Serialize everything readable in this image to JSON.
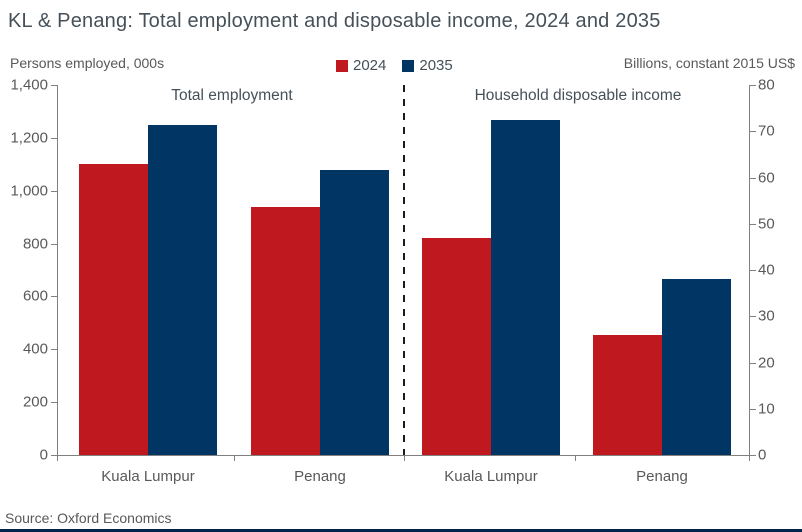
{
  "header": {
    "title": "KL & Penang: Total employment and disposable income, 2024 and 2035",
    "left_axis_title": "Persons employed, 000s",
    "right_axis_title": "Billions, constant 2015 US$"
  },
  "legend": [
    {
      "label": "2024",
      "color": "#C0181F"
    },
    {
      "label": "2035",
      "color": "#003564"
    }
  ],
  "footer": {
    "source": "Source: Oxford Economics"
  },
  "chart_data": {
    "type": "bar",
    "title": "KL & Penang: Total employment and disposable income, 2024 and 2035",
    "legend": [
      "2024",
      "2035"
    ],
    "grid": false,
    "legend_position": "top-center",
    "series_colors": {
      "2024": "#C0181F",
      "2035": "#003564"
    },
    "panels": [
      {
        "title": "Total employment",
        "axis_side": "left",
        "ylabel": "Persons employed, 000s",
        "ylim": [
          0,
          1400
        ],
        "tick_labels": [
          "0",
          "200",
          "400",
          "600",
          "800",
          "1,000",
          "1,200",
          "1,400"
        ],
        "categories": [
          "Kuala Lumpur",
          "Penang"
        ],
        "series": [
          {
            "name": "2024",
            "color": "#C0181F",
            "values": [
              1100,
              940
            ]
          },
          {
            "name": "2035",
            "color": "#003564",
            "values": [
              1250,
              1080
            ]
          }
        ]
      },
      {
        "title": "Household disposable income",
        "axis_side": "right",
        "ylabel": "Billions, constant 2015 US$",
        "ylim": [
          0,
          80
        ],
        "tick_labels": [
          "0",
          "10",
          "20",
          "30",
          "40",
          "50",
          "60",
          "70",
          "80"
        ],
        "categories": [
          "Kuala Lumpur",
          "Penang"
        ],
        "series": [
          {
            "name": "2024",
            "color": "#C0181F",
            "values": [
              47,
              26
            ]
          },
          {
            "name": "2035",
            "color": "#003564",
            "values": [
              72.5,
              38
            ]
          }
        ]
      }
    ],
    "source": "Source: Oxford Economics"
  }
}
